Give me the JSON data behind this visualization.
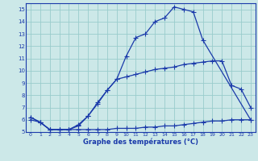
{
  "background_color": "#cce8e8",
  "grid_color": "#99cccc",
  "line_color": "#1a3aaa",
  "xlabel": "Graphe des températures (°C)",
  "xlim": [
    -0.5,
    23.5
  ],
  "ylim": [
    5,
    15.5
  ],
  "yticks": [
    5,
    6,
    7,
    8,
    9,
    10,
    11,
    12,
    13,
    14,
    15
  ],
  "xticks": [
    0,
    1,
    2,
    3,
    4,
    5,
    6,
    7,
    8,
    9,
    10,
    11,
    12,
    13,
    14,
    15,
    16,
    17,
    18,
    19,
    20,
    21,
    22,
    23
  ],
  "curve1_x": [
    0,
    1,
    2,
    3,
    4,
    5,
    6,
    7,
    8,
    9,
    10,
    11,
    12,
    13,
    14,
    15,
    16,
    17,
    18,
    23
  ],
  "curve1_y": [
    6.2,
    5.8,
    5.2,
    5.2,
    5.2,
    5.5,
    6.3,
    7.3,
    8.4,
    9.3,
    11.2,
    12.7,
    13.0,
    14.0,
    14.3,
    15.2,
    15.0,
    14.8,
    12.5,
    6.0
  ],
  "curve2_x": [
    0,
    1,
    2,
    3,
    4,
    5,
    6,
    7,
    8,
    9,
    10,
    11,
    12,
    13,
    14,
    15,
    16,
    17,
    18,
    19,
    20,
    21,
    22,
    23
  ],
  "curve2_y": [
    6.2,
    5.8,
    5.2,
    5.2,
    5.2,
    5.6,
    6.3,
    7.4,
    8.4,
    9.3,
    9.5,
    9.7,
    9.9,
    10.1,
    10.2,
    10.3,
    10.5,
    10.6,
    10.7,
    10.8,
    10.8,
    8.8,
    8.5,
    7.0
  ],
  "curve3_x": [
    0,
    1,
    2,
    3,
    4,
    5,
    6,
    7,
    8,
    9,
    10,
    11,
    12,
    13,
    14,
    15,
    16,
    17,
    18,
    19,
    20,
    21,
    22,
    23
  ],
  "curve3_y": [
    6.0,
    5.8,
    5.2,
    5.2,
    5.2,
    5.2,
    5.2,
    5.2,
    5.2,
    5.3,
    5.3,
    5.3,
    5.4,
    5.4,
    5.5,
    5.5,
    5.6,
    5.7,
    5.8,
    5.9,
    5.9,
    6.0,
    6.0,
    6.0
  ]
}
